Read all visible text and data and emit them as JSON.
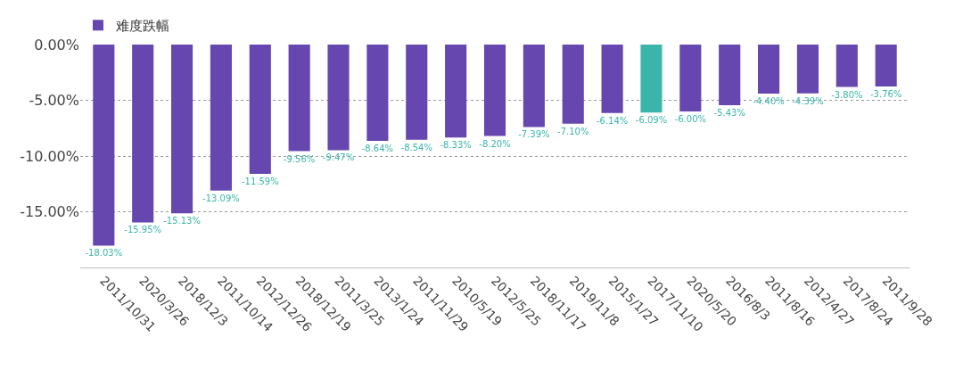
{
  "chart_data": {
    "type": "bar",
    "categories": [
      "2011/10/31",
      "2020/3/26",
      "2018/12/3",
      "2011/10/14",
      "2012/12/26",
      "2018/12/19",
      "2011/3/25",
      "2013/1/24",
      "2011/11/29",
      "2010/5/19",
      "2012/5/25",
      "2018/11/17",
      "2019/11/8",
      "2015/1/27",
      "2017/11/10",
      "2020/5/20",
      "2016/8/3",
      "2011/8/16",
      "2012/4/27",
      "2017/8/24",
      "2011/9/28"
    ],
    "series": [
      {
        "name": "难度跌幅",
        "color": "#6647b0",
        "colors": [
          null,
          null,
          null,
          null,
          null,
          null,
          null,
          null,
          null,
          null,
          null,
          null,
          null,
          null,
          "#3bb5aa",
          null,
          null,
          null,
          null,
          null,
          null
        ],
        "values": [
          -18.03,
          -15.95,
          -15.13,
          -13.09,
          -11.59,
          -9.56,
          -9.47,
          -8.64,
          -8.54,
          -8.33,
          -8.2,
          -7.39,
          -7.1,
          -6.14,
          -6.09,
          -6.0,
          -5.43,
          -4.4,
          -4.39,
          -3.8,
          -3.76
        ],
        "value_labels": [
          "-18.03%",
          "-15.95%",
          "-15.13%",
          "-13.09%",
          "-11.59%",
          "-9.56%",
          "-9.47%",
          "-8.64%",
          "-8.54%",
          "-8.33%",
          "-8.20%",
          "-7.39%",
          "-7.10%",
          "-6.14%",
          "-6.09%",
          "-6.00%",
          "-5.43%",
          "-4.40%",
          "-4.39%",
          "-3.80%",
          "-3.76%"
        ]
      }
    ],
    "ylim": [
      -20,
      0
    ],
    "yticks": [
      {
        "value": 0,
        "label": "0.00%"
      },
      {
        "value": -5,
        "label": "-5.00%"
      },
      {
        "value": -10,
        "label": "-10.00%"
      },
      {
        "value": -15,
        "label": "-15.00%"
      }
    ],
    "grid": "y",
    "legend": "top left"
  }
}
